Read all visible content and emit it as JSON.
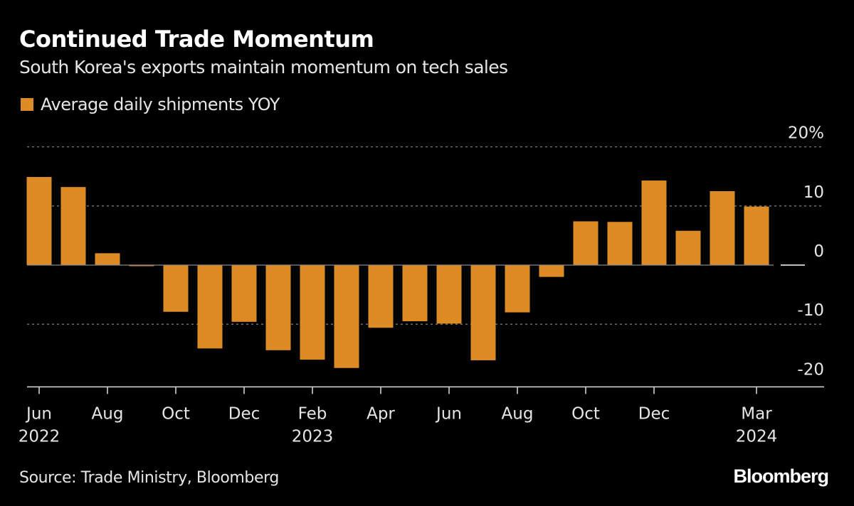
{
  "title": "Continued Trade Momentum",
  "subtitle": "South Korea's exports maintain momentum on tech sales",
  "source": "Source: Trade Ministry, Bloomberg",
  "logo": "Bloomberg",
  "chart_data": {
    "type": "bar",
    "title": "Continued Trade Momentum",
    "ylabel": "",
    "xlabel": "",
    "ylim": [
      -20,
      20
    ],
    "yticks": [
      {
        "value": 20,
        "label": "20%"
      },
      {
        "value": 10,
        "label": "10"
      },
      {
        "value": 0,
        "label": "0"
      },
      {
        "value": -10,
        "label": "-10"
      },
      {
        "value": -20,
        "label": "-20"
      }
    ],
    "grid": true,
    "legend_position": "top-left",
    "bar_color": "#dd8b25",
    "series": [
      {
        "name": "Average daily shipments YOY",
        "values": [
          14.9,
          13.2,
          2.0,
          -0.1,
          -7.9,
          -14.1,
          -9.6,
          -14.4,
          -16.0,
          -17.4,
          -10.6,
          -9.5,
          -9.9,
          -16.1,
          -8.0,
          -2.0,
          7.4,
          7.3,
          14.3,
          5.8,
          12.5,
          9.9,
          null
        ]
      }
    ],
    "categories": [
      "2022-06",
      "2022-07",
      "2022-08",
      "2022-09",
      "2022-10",
      "2022-11",
      "2022-12",
      "2023-01",
      "2023-02",
      "2023-03",
      "2023-04",
      "2023-05",
      "2023-06",
      "2023-07",
      "2023-08",
      "2023-09",
      "2023-10",
      "2023-11",
      "2023-12",
      "2024-01",
      "2024-02",
      "2024-03",
      "2024-04"
    ],
    "xticks": [
      {
        "index": 0,
        "label": "Jun",
        "year": "2022"
      },
      {
        "index": 2,
        "label": "Aug"
      },
      {
        "index": 4,
        "label": "Oct"
      },
      {
        "index": 6,
        "label": "Dec"
      },
      {
        "index": 8,
        "label": "Feb",
        "year": "2023"
      },
      {
        "index": 10,
        "label": "Apr"
      },
      {
        "index": 12,
        "label": "Jun"
      },
      {
        "index": 14,
        "label": "Aug"
      },
      {
        "index": 16,
        "label": "Oct"
      },
      {
        "index": 18,
        "label": "Dec"
      },
      {
        "index": 21,
        "label": "Mar",
        "year": "2024"
      }
    ]
  }
}
